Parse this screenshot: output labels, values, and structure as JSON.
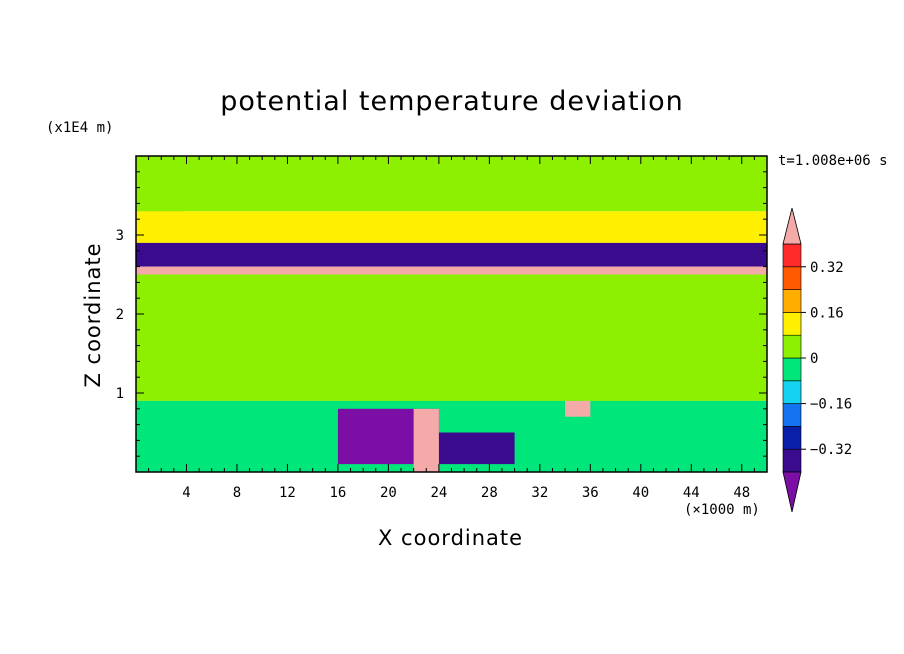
{
  "chart_data": {
    "type": "heatmap",
    "title": "potential temperature deviation",
    "xlabel": "X coordinate",
    "ylabel": "Z coordinate",
    "x_unit_label": "(×1000 m)",
    "y_unit_label": "(x1E4 m)",
    "time_label": "t=1.008e+06 s",
    "xlim": [
      0,
      50
    ],
    "ylim": [
      0,
      4
    ],
    "x_ticks": [
      4,
      8,
      12,
      16,
      20,
      24,
      28,
      32,
      36,
      40,
      44,
      48
    ],
    "x_tick_labels": [
      "4",
      "8",
      "12",
      "16",
      "20",
      "24",
      "28",
      "32",
      "36",
      "40",
      "44",
      "48"
    ],
    "y_ticks": [
      1,
      2,
      3
    ],
    "y_tick_labels": [
      "1",
      "2",
      "3"
    ],
    "colorbar": {
      "levels": [
        -0.48,
        -0.4,
        -0.32,
        -0.24,
        -0.16,
        -0.08,
        0,
        0.08,
        0.16,
        0.24,
        0.32,
        0.4,
        0.48
      ],
      "labeled_levels": [
        0.32,
        0.16,
        0,
        -0.16,
        -0.32
      ],
      "labels": [
        "0.32",
        "0.16",
        "0",
        "−0.16",
        "−0.32"
      ],
      "colors_bottom_to_top": [
        "#7b0fa5",
        "#3a0b8c",
        "#0a1fa8",
        "#1473f0",
        "#14d2f0",
        "#00e67a",
        "#8cf000",
        "#fff000",
        "#ffae00",
        "#ff5a00",
        "#ff2a2a",
        "#f5aaaa"
      ]
    },
    "regions": [
      {
        "x": [
          0,
          50
        ],
        "z": [
          3.3,
          4.0
        ],
        "value": 0.04
      },
      {
        "x": [
          0,
          4
        ],
        "z": [
          3.3,
          4.0
        ],
        "value": 0.0
      },
      {
        "x": [
          0,
          50
        ],
        "z": [
          2.9,
          3.3
        ],
        "value": 0.15
      },
      {
        "x": [
          0,
          50
        ],
        "z": [
          2.6,
          2.9
        ],
        "value": -0.35
      },
      {
        "x": [
          0,
          50
        ],
        "z": [
          2.5,
          2.6
        ],
        "value": 0.4
      },
      {
        "x": [
          0,
          50
        ],
        "z": [
          0.9,
          2.5
        ],
        "value": 0.04
      },
      {
        "x": [
          17,
          40
        ],
        "z": [
          0.9,
          2.5
        ],
        "value": 0.0
      },
      {
        "x": [
          0,
          50
        ],
        "z": [
          0.0,
          0.9
        ],
        "value": -0.05
      },
      {
        "x": [
          16,
          24
        ],
        "z": [
          0.1,
          0.8
        ],
        "value": -0.42
      },
      {
        "x": [
          24,
          30
        ],
        "z": [
          0.1,
          0.5
        ],
        "value": -0.38
      },
      {
        "x": [
          22,
          24
        ],
        "z": [
          0.0,
          0.8
        ],
        "value": 0.4
      },
      {
        "x": [
          34,
          36
        ],
        "z": [
          0.7,
          0.9
        ],
        "value": 0.4
      }
    ]
  }
}
